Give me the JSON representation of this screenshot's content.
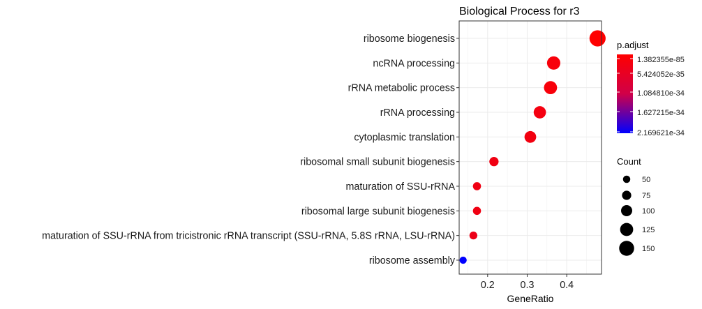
{
  "chart_data": {
    "type": "scatter",
    "title": "Biological Process for r3",
    "xlabel": "GeneRatio",
    "ylabel": "",
    "xlim": [
      0.128,
      0.488
    ],
    "x_ticks": [
      "0.2",
      "0.3",
      "0.4"
    ],
    "x_tick_values": [
      0.2,
      0.3,
      0.4
    ],
    "grid": true,
    "legend_position": "right",
    "categories": [
      "ribosome biogenesis",
      "ncRNA processing",
      "rRNA metabolic process",
      "rRNA processing",
      "cytoplasmic translation",
      "ribosomal small subunit biogenesis",
      "maturation of SSU-rRNA",
      "ribosomal large subunit biogenesis",
      "maturation of SSU-rRNA from tricistronic rRNA transcript (SSU-rRNA, 5.8S rRNA, LSU-rRNA)",
      "ribosome assembly"
    ],
    "points": [
      {
        "term": "ribosome biogenesis",
        "gene_ratio": 0.478,
        "count": 165,
        "p_adjust": 1.382355e-85
      },
      {
        "term": "ncRNA processing",
        "gene_ratio": 0.367,
        "count": 128,
        "p_adjust": 1e-60
      },
      {
        "term": "rRNA metabolic process",
        "gene_ratio": 0.359,
        "count": 125,
        "p_adjust": 1e-60
      },
      {
        "term": "rRNA processing",
        "gene_ratio": 0.332,
        "count": 115,
        "p_adjust": 1e-58
      },
      {
        "term": "cytoplasmic translation",
        "gene_ratio": 0.308,
        "count": 107,
        "p_adjust": 1e-45
      },
      {
        "term": "ribosomal small subunit biogenesis",
        "gene_ratio": 0.216,
        "count": 75,
        "p_adjust": 1e-40
      },
      {
        "term": "maturation of SSU-rRNA",
        "gene_ratio": 0.173,
        "count": 60,
        "p_adjust": 1e-40
      },
      {
        "term": "ribosomal large subunit biogenesis",
        "gene_ratio": 0.173,
        "count": 60,
        "p_adjust": 1e-40
      },
      {
        "term": "maturation of SSU-rRNA from tricistronic rRNA transcript (SSU-rRNA, 5.8S rRNA, LSU-rRNA)",
        "gene_ratio": 0.164,
        "count": 57,
        "p_adjust": 1e-38
      },
      {
        "term": "ribosome assembly",
        "gene_ratio": 0.138,
        "count": 48,
        "p_adjust": 2.169621e-34
      }
    ],
    "color_legend": {
      "title": "p.adjust",
      "labels": [
        "1.382355e-85",
        "5.424052e-35",
        "1.084810e-34",
        "1.627215e-34",
        "2.169621e-34"
      ],
      "low_color": "#ff0000",
      "high_color": "#0000ff"
    },
    "size_legend": {
      "title": "Count",
      "values": [
        50,
        75,
        100,
        125,
        150
      ],
      "labels": [
        "50",
        "75",
        "100",
        "125",
        "150"
      ],
      "color": "#000000"
    },
    "point_colors": [
      "#ff0000",
      "#f8000a",
      "#f8000a",
      "#f50010",
      "#f2000f",
      "#f00012",
      "#f00012",
      "#f00012",
      "#ec0018",
      "#0000ff"
    ]
  }
}
